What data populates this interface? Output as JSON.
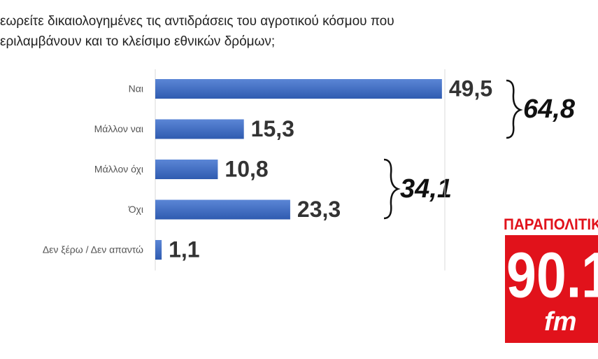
{
  "chart_data": {
    "type": "hbar",
    "title": [
      "εωρείτε δικαιολογημένες τις αντιδράσεις του αγροτικού κόσμου που",
      "εριλαμβάνουν και το κλείσιμο εθνικών δρόμων;"
    ],
    "categories": [
      "Ναι",
      "Μάλλον ναι",
      "Μάλλον όχι",
      "Όχι",
      "Δεν ξέρω / Δεν απαντώ"
    ],
    "values": [
      49.5,
      15.3,
      10.8,
      23.3,
      1.1
    ],
    "value_labels": [
      "49,5",
      "15,3",
      "10,8",
      "23,3",
      "1,1"
    ],
    "color": "#4472c4",
    "xlim": [
      0,
      50
    ],
    "grid": true,
    "annotations": [
      "64,8",
      "34,1"
    ]
  },
  "logo": {
    "top": "ΠΑΡΑΠΟΛΙΤΙΚ",
    "number": "90.1",
    "suffix": "fm"
  }
}
